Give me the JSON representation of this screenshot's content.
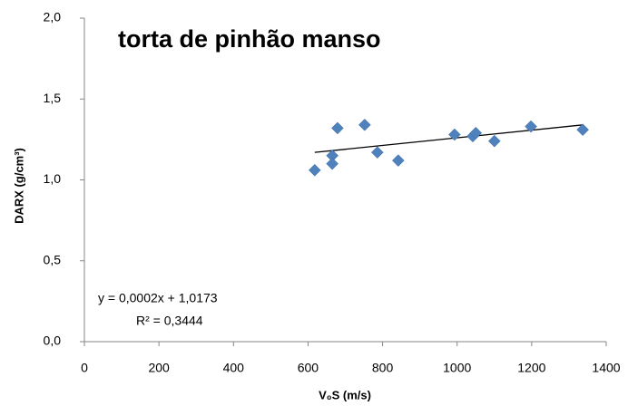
{
  "chart_data": {
    "type": "scatter",
    "title": "torta de pinhão manso",
    "x_label": "V₀S (m/s)",
    "y_label": "DARX (g/cm³)",
    "x": [
      618,
      665,
      665,
      679,
      752,
      786,
      842,
      993,
      1042,
      1050,
      1100,
      1198,
      1337
    ],
    "values": [
      1.06,
      1.15,
      1.1,
      1.32,
      1.34,
      1.17,
      1.12,
      1.28,
      1.27,
      1.29,
      1.24,
      1.33,
      1.31
    ],
    "color": "#4f81bd",
    "trendline": {
      "x": [
        618,
        1337
      ],
      "values": [
        1.17,
        1.34
      ],
      "color": "#000000"
    },
    "annotations": [
      "y = 0,0002x + 1,0173",
      "R² = 0,3444"
    ],
    "xlim": [
      0,
      1400
    ],
    "xticks": [
      0,
      200,
      400,
      600,
      800,
      1000,
      1200,
      1400
    ],
    "ylim": [
      0,
      2.0
    ],
    "yticks": [
      {
        "value": 0,
        "label": "0,0"
      },
      {
        "value": 0.5,
        "label": "0,5"
      },
      {
        "value": 1.0,
        "label": "1,0"
      },
      {
        "value": 1.5,
        "label": "1,5"
      },
      {
        "value": 2.0,
        "label": "2,0"
      }
    ],
    "grid": false
  }
}
